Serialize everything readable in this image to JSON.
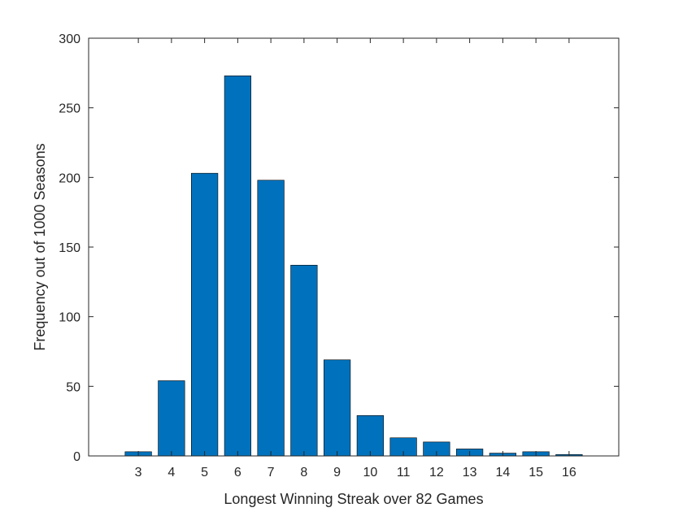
{
  "chart_data": {
    "type": "bar",
    "title": "",
    "xlabel": "Longest Winning Streak over 82 Games",
    "ylabel": "Frequency out of 1000 Seasons",
    "categories": [
      "3",
      "4",
      "5",
      "6",
      "7",
      "8",
      "9",
      "10",
      "11",
      "12",
      "13",
      "14",
      "15",
      "16"
    ],
    "values": [
      3,
      54,
      203,
      273,
      198,
      137,
      69,
      29,
      13,
      10,
      5,
      2,
      3,
      1
    ],
    "ylim": [
      0,
      300
    ],
    "yticks": [
      0,
      50,
      100,
      150,
      200,
      250,
      300
    ],
    "xlim": [
      1.5,
      17.5
    ],
    "grid": false,
    "legend": "none",
    "colors": {
      "bar_fill": "#0072BD",
      "bar_edge": "#000000",
      "axis": "#262626"
    }
  }
}
